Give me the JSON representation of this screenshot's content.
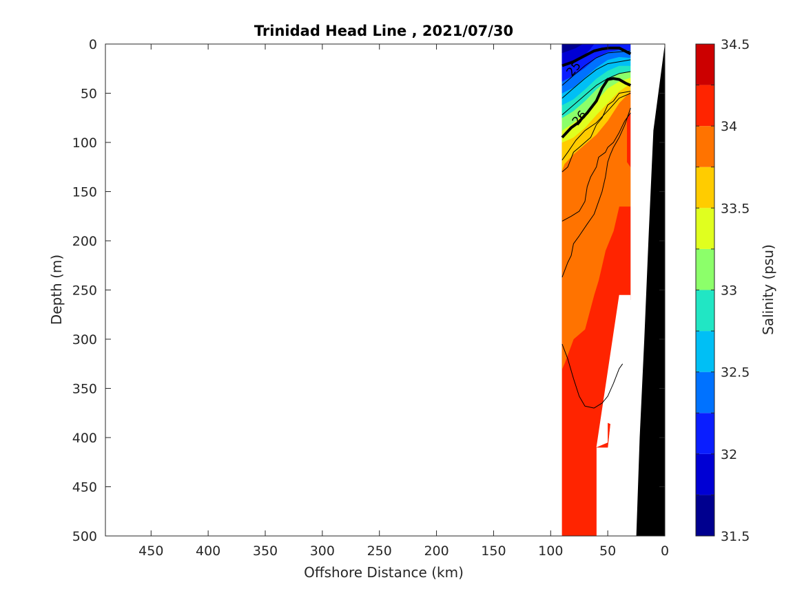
{
  "chart_data": {
    "type": "contour",
    "title": "Trinidad Head Line , 2021/07/30",
    "xlabel": "Offshore Distance (km)",
    "ylabel": "Depth (m)",
    "xlim": [
      490,
      0
    ],
    "ylim": [
      0,
      500
    ],
    "x_reversed": true,
    "y_reversed": true,
    "xticks": [
      450,
      400,
      350,
      300,
      250,
      200,
      150,
      100,
      50,
      0
    ],
    "yticks": [
      0,
      50,
      100,
      150,
      200,
      250,
      300,
      350,
      400,
      450,
      500
    ],
    "colorbar": {
      "label": "Salinity (psu)",
      "range": [
        31.5,
        34.5
      ],
      "ticks": [
        31.5,
        32,
        32.5,
        33,
        33.5,
        34,
        34.5
      ],
      "levels": [
        {
          "from": 31.5,
          "to": 31.75,
          "color": "#00008f"
        },
        {
          "from": 31.75,
          "to": 32.0,
          "color": "#0000d4"
        },
        {
          "from": 32.0,
          "to": 32.25,
          "color": "#0a1eff"
        },
        {
          "from": 32.25,
          "to": 32.5,
          "color": "#0072ff"
        },
        {
          "from": 32.5,
          "to": 32.75,
          "color": "#00bff5"
        },
        {
          "from": 32.75,
          "to": 33.0,
          "color": "#21e6c4"
        },
        {
          "from": 33.0,
          "to": 33.25,
          "color": "#8cff6a"
        },
        {
          "from": 33.25,
          "to": 33.5,
          "color": "#e0ff1f"
        },
        {
          "from": 33.5,
          "to": 33.75,
          "color": "#ffcc00"
        },
        {
          "from": 33.75,
          "to": 34.0,
          "color": "#ff7300"
        },
        {
          "from": 34.0,
          "to": 34.25,
          "color": "#ff2400"
        },
        {
          "from": 34.25,
          "to": 34.5,
          "color": "#cc0000"
        }
      ]
    },
    "density_contour_labels": [
      "25",
      "26"
    ],
    "filled_regions": [
      {
        "level": "34.0-34.25",
        "color": "#ff2400",
        "poly": [
          [
            90,
            0
          ],
          [
            30,
            0
          ],
          [
            30,
            260
          ],
          [
            40,
            255
          ],
          [
            40,
            350
          ],
          [
            45,
            355
          ],
          [
            50,
            410
          ],
          [
            60,
            410
          ],
          [
            60,
            500
          ],
          [
            90,
            500
          ]
        ]
      },
      {
        "level": "33.75-34.0",
        "color": "#ff7300",
        "poly": [
          [
            90,
            0
          ],
          [
            30,
            0
          ],
          [
            30,
            165
          ],
          [
            40,
            165
          ],
          [
            45,
            190
          ],
          [
            52,
            210
          ],
          [
            58,
            240
          ],
          [
            62,
            255
          ],
          [
            70,
            290
          ],
          [
            80,
            300
          ],
          [
            88,
            325
          ],
          [
            90,
            330
          ]
        ]
      },
      {
        "level": "33.5-33.75",
        "color": "#ffcc00",
        "poly": [
          [
            90,
            0
          ],
          [
            30,
            0
          ],
          [
            30,
            48
          ],
          [
            40,
            60
          ],
          [
            50,
            78
          ],
          [
            60,
            92
          ],
          [
            68,
            100
          ],
          [
            72,
            104
          ],
          [
            80,
            112
          ],
          [
            88,
            122
          ],
          [
            90,
            128
          ]
        ]
      },
      {
        "level": "33.25-33.5",
        "color": "#e0ff1f",
        "poly": [
          [
            90,
            0
          ],
          [
            30,
            0
          ],
          [
            30,
            40
          ],
          [
            40,
            48
          ],
          [
            50,
            60
          ],
          [
            60,
            72
          ],
          [
            70,
            85
          ],
          [
            80,
            95
          ],
          [
            90,
            100
          ]
        ]
      },
      {
        "level": "33.0-33.25",
        "color": "#8cff6a",
        "poly": [
          [
            90,
            0
          ],
          [
            30,
            0
          ],
          [
            30,
            34
          ],
          [
            40,
            38
          ],
          [
            50,
            45
          ],
          [
            60,
            58
          ],
          [
            70,
            70
          ],
          [
            80,
            80
          ],
          [
            90,
            88
          ]
        ]
      },
      {
        "level": "32.75-33.0",
        "color": "#21e6c4",
        "poly": [
          [
            90,
            0
          ],
          [
            30,
            0
          ],
          [
            30,
            28
          ],
          [
            40,
            30
          ],
          [
            50,
            36
          ],
          [
            60,
            46
          ],
          [
            70,
            58
          ],
          [
            80,
            68
          ],
          [
            90,
            75
          ]
        ]
      },
      {
        "level": "32.5-32.75",
        "color": "#00bff5",
        "poly": [
          [
            90,
            0
          ],
          [
            30,
            0
          ],
          [
            30,
            22
          ],
          [
            40,
            22
          ],
          [
            50,
            27
          ],
          [
            60,
            35
          ],
          [
            70,
            46
          ],
          [
            80,
            56
          ],
          [
            90,
            62
          ]
        ]
      },
      {
        "level": "32.25-32.5",
        "color": "#0072ff",
        "poly": [
          [
            90,
            0
          ],
          [
            30,
            0
          ],
          [
            30,
            14
          ],
          [
            40,
            13
          ],
          [
            50,
            16
          ],
          [
            60,
            24
          ],
          [
            70,
            34
          ],
          [
            80,
            44
          ],
          [
            90,
            50
          ]
        ]
      },
      {
        "level": "32.0-32.25",
        "color": "#0a1eff",
        "poly": [
          [
            90,
            0
          ],
          [
            30,
            0
          ],
          [
            30,
            6
          ],
          [
            40,
            6
          ],
          [
            50,
            8
          ],
          [
            60,
            14
          ],
          [
            70,
            24
          ],
          [
            80,
            32
          ],
          [
            90,
            38
          ]
        ]
      },
      {
        "level": "31.75-32.0",
        "color": "#0000d4",
        "poly": [
          [
            90,
            0
          ],
          [
            62,
            0
          ],
          [
            66,
            6
          ],
          [
            72,
            13
          ],
          [
            80,
            18
          ],
          [
            90,
            22
          ]
        ]
      },
      {
        "level": "31.5-31.75",
        "color": "#00008f",
        "poly": [
          [
            90,
            0
          ],
          [
            72,
            0
          ],
          [
            78,
            4
          ],
          [
            85,
            7
          ],
          [
            90,
            9
          ]
        ]
      },
      {
        "level": "34.25-34.5",
        "color": "#cc0000",
        "poly": [
          [
            32,
            85
          ],
          [
            30,
            85
          ],
          [
            30,
            115
          ],
          [
            32,
            115
          ]
        ]
      },
      {
        "level": "34.0-34.25",
        "color": "#ff2400",
        "poly": [
          [
            33,
            75
          ],
          [
            30,
            70
          ],
          [
            30,
            125
          ],
          [
            33,
            120
          ]
        ]
      }
    ],
    "white_gaps": [
      {
        "poly": [
          [
            30,
            0
          ],
          [
            0,
            0
          ],
          [
            26,
            500
          ],
          [
            30,
            500
          ]
        ]
      },
      {
        "poly": [
          [
            40,
            255
          ],
          [
            30,
            255
          ],
          [
            30,
            500
          ],
          [
            40,
            500
          ],
          [
            40,
            390
          ],
          [
            50,
            385
          ],
          [
            50,
            405
          ],
          [
            60,
            410
          ]
        ]
      }
    ],
    "bathymetry": {
      "color": "#000000",
      "poly": [
        [
          0,
          0
        ],
        [
          10,
          88
        ],
        [
          14,
          190
        ],
        [
          18,
          300
        ],
        [
          22,
          400
        ],
        [
          25,
          500
        ],
        [
          0,
          500
        ]
      ]
    },
    "thin_contours": [
      [
        [
          90,
          237
        ],
        [
          85,
          222
        ],
        [
          82,
          215
        ],
        [
          80,
          203
        ],
        [
          75,
          195
        ],
        [
          68,
          183
        ],
        [
          62,
          173
        ],
        [
          58,
          160
        ],
        [
          55,
          150
        ],
        [
          52,
          135
        ],
        [
          50,
          120
        ],
        [
          48,
          113
        ],
        [
          45,
          105
        ],
        [
          40,
          95
        ],
        [
          35,
          82
        ],
        [
          30,
          65
        ]
      ],
      [
        [
          90,
          180
        ],
        [
          82,
          175
        ],
        [
          75,
          170
        ],
        [
          70,
          160
        ],
        [
          68,
          145
        ],
        [
          65,
          135
        ],
        [
          60,
          125
        ],
        [
          58,
          115
        ],
        [
          52,
          110
        ],
        [
          50,
          105
        ],
        [
          45,
          100
        ],
        [
          40,
          90
        ],
        [
          35,
          78
        ],
        [
          30,
          70
        ]
      ],
      [
        [
          90,
          130
        ],
        [
          85,
          125
        ],
        [
          80,
          110
        ],
        [
          75,
          105
        ],
        [
          70,
          100
        ],
        [
          65,
          95
        ],
        [
          60,
          82
        ],
        [
          55,
          75
        ],
        [
          50,
          62
        ],
        [
          45,
          58
        ],
        [
          40,
          50
        ],
        [
          30,
          48
        ]
      ],
      [
        [
          90,
          305
        ],
        [
          85,
          320
        ],
        [
          80,
          340
        ],
        [
          75,
          358
        ],
        [
          70,
          368
        ],
        [
          62,
          370
        ],
        [
          55,
          365
        ],
        [
          50,
          358
        ],
        [
          45,
          345
        ],
        [
          40,
          330
        ],
        [
          37,
          325
        ]
      ],
      [
        [
          90,
          118
        ],
        [
          85,
          110
        ],
        [
          78,
          98
        ],
        [
          70,
          88
        ],
        [
          60,
          80
        ],
        [
          50,
          68
        ],
        [
          40,
          55
        ],
        [
          30,
          50
        ]
      ],
      [
        [
          90,
          72
        ],
        [
          80,
          62
        ],
        [
          70,
          52
        ],
        [
          60,
          42
        ],
        [
          50,
          35
        ],
        [
          40,
          30
        ],
        [
          30,
          28
        ]
      ],
      [
        [
          90,
          55
        ],
        [
          80,
          45
        ],
        [
          70,
          35
        ],
        [
          60,
          26
        ],
        [
          50,
          20
        ],
        [
          40,
          18
        ],
        [
          30,
          16
        ]
      ],
      [
        [
          90,
          42
        ],
        [
          80,
          32
        ],
        [
          70,
          22
        ],
        [
          60,
          14
        ],
        [
          50,
          9
        ],
        [
          40,
          8
        ],
        [
          30,
          7
        ]
      ]
    ],
    "thick_contours": [
      {
        "label": "25",
        "label_at": [
          80,
          25
        ],
        "points": [
          [
            90,
            22
          ],
          [
            80,
            18
          ],
          [
            72,
            13
          ],
          [
            62,
            7
          ],
          [
            55,
            5
          ],
          [
            48,
            4
          ],
          [
            40,
            4
          ],
          [
            30,
            10
          ]
        ]
      },
      {
        "label": "26",
        "label_at": [
          75,
          75
        ],
        "points": [
          [
            90,
            95
          ],
          [
            82,
            85
          ],
          [
            76,
            80
          ],
          [
            68,
            70
          ],
          [
            60,
            58
          ],
          [
            55,
            45
          ],
          [
            50,
            36
          ],
          [
            45,
            35
          ],
          [
            40,
            36
          ],
          [
            34,
            40
          ],
          [
            30,
            42
          ]
        ]
      }
    ]
  }
}
